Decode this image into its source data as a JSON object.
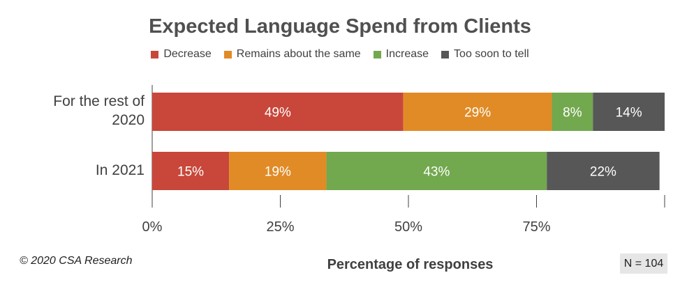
{
  "chart_data": {
    "type": "bar",
    "orientation": "horizontal",
    "stacked": true,
    "title": "Expected Language Spend from Clients",
    "xlabel": "Percentage of responses",
    "categories": [
      "For the rest of 2020",
      "In 2021"
    ],
    "series": [
      {
        "name": "Decrease",
        "color": "#c8473a",
        "values": [
          49,
          15
        ],
        "labels": [
          "49%",
          "15%"
        ]
      },
      {
        "name": "Remains about the same",
        "color": "#e18b26",
        "values": [
          29,
          19
        ],
        "labels": [
          "29%",
          "19%"
        ]
      },
      {
        "name": "Increase",
        "color": "#72a84e",
        "values": [
          8,
          43
        ],
        "labels": [
          "8%",
          "43%"
        ]
      },
      {
        "name": "Too soon to tell",
        "color": "#575757",
        "values": [
          14,
          22
        ],
        "labels": [
          "14%",
          "22%"
        ]
      }
    ],
    "xlim": [
      0,
      100
    ],
    "xticks": [
      0,
      25,
      50,
      75
    ],
    "xtick_labels": [
      "0%",
      "25%",
      "50%",
      "75%"
    ],
    "grid": false,
    "legend_position": "top"
  },
  "footer": {
    "copyright": "© 2020 CSA Research",
    "sample_size": "N = 104"
  }
}
